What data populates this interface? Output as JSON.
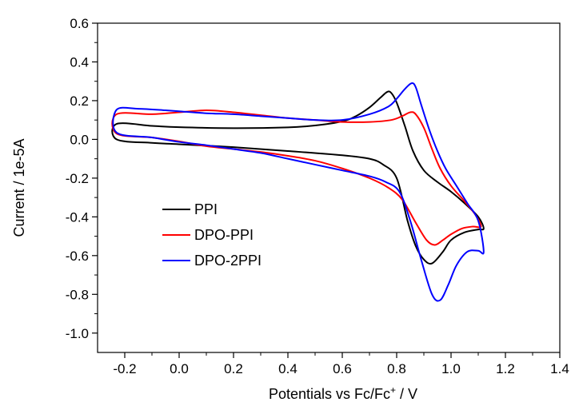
{
  "chart_data": {
    "type": "line",
    "xlabel": "Potentials vs Fc/Fc",
    "xlabel_sup": "+",
    "xlabel_unit": " / V",
    "ylabel": "Current / 1e-5A",
    "xlim": [
      -0.3,
      1.4
    ],
    "ylim": [
      -1.1,
      0.6
    ],
    "xticks": [
      -0.2,
      0.0,
      0.2,
      0.4,
      0.6,
      0.8,
      1.0,
      1.2,
      1.4
    ],
    "xtick_labels": [
      "-0.2",
      "0.0",
      "0.2",
      "0.4",
      "0.6",
      "0.8",
      "1.0",
      "1.2",
      "1.4"
    ],
    "yticks": [
      -1.0,
      -0.8,
      -0.6,
      -0.4,
      -0.2,
      0.0,
      0.2,
      0.4,
      0.6
    ],
    "ytick_labels": [
      "-1.0",
      "-0.8",
      "-0.6",
      "-0.4",
      "-0.2",
      "0.0",
      "0.2",
      "0.4",
      "0.6"
    ],
    "grid": false,
    "legend_position": "middle-left",
    "series": [
      {
        "name": "PPI",
        "color": "#000000",
        "points": [
          [
            -0.23,
            0.08
          ],
          [
            -0.1,
            0.07
          ],
          [
            0.0,
            0.063
          ],
          [
            0.2,
            0.058
          ],
          [
            0.4,
            0.062
          ],
          [
            0.5,
            0.072
          ],
          [
            0.6,
            0.093
          ],
          [
            0.65,
            0.12
          ],
          [
            0.7,
            0.165
          ],
          [
            0.74,
            0.215
          ],
          [
            0.765,
            0.245
          ],
          [
            0.78,
            0.24
          ],
          [
            0.8,
            0.19
          ],
          [
            0.83,
            0.07
          ],
          [
            0.86,
            -0.06
          ],
          [
            0.9,
            -0.16
          ],
          [
            0.95,
            -0.22
          ],
          [
            1.0,
            -0.27
          ],
          [
            1.05,
            -0.33
          ],
          [
            1.1,
            -0.4
          ],
          [
            1.12,
            -0.46
          ],
          [
            1.1,
            -0.465
          ],
          [
            1.05,
            -0.48
          ],
          [
            1.0,
            -0.52
          ],
          [
            0.97,
            -0.58
          ],
          [
            0.93,
            -0.64
          ],
          [
            0.9,
            -0.62
          ],
          [
            0.87,
            -0.55
          ],
          [
            0.84,
            -0.42
          ],
          [
            0.8,
            -0.2
          ],
          [
            0.75,
            -0.13
          ],
          [
            0.7,
            -0.1
          ],
          [
            0.6,
            -0.082
          ],
          [
            0.4,
            -0.06
          ],
          [
            0.2,
            -0.04
          ],
          [
            0.0,
            -0.025
          ],
          [
            -0.1,
            -0.018
          ],
          [
            -0.23,
            0.0
          ]
        ]
      },
      {
        "name": "DPO-PPI",
        "color": "#ff0000",
        "points": [
          [
            -0.23,
            0.13
          ],
          [
            -0.1,
            0.13
          ],
          [
            0.0,
            0.14
          ],
          [
            0.1,
            0.15
          ],
          [
            0.2,
            0.14
          ],
          [
            0.3,
            0.125
          ],
          [
            0.4,
            0.11
          ],
          [
            0.5,
            0.1
          ],
          [
            0.6,
            0.09
          ],
          [
            0.7,
            0.09
          ],
          [
            0.78,
            0.1
          ],
          [
            0.82,
            0.12
          ],
          [
            0.85,
            0.14
          ],
          [
            0.87,
            0.13
          ],
          [
            0.9,
            0.06
          ],
          [
            0.93,
            -0.05
          ],
          [
            0.96,
            -0.15
          ],
          [
            1.0,
            -0.24
          ],
          [
            1.05,
            -0.32
          ],
          [
            1.09,
            -0.39
          ],
          [
            1.11,
            -0.45
          ],
          [
            1.08,
            -0.45
          ],
          [
            1.04,
            -0.46
          ],
          [
            1.0,
            -0.49
          ],
          [
            0.97,
            -0.52
          ],
          [
            0.94,
            -0.545
          ],
          [
            0.91,
            -0.52
          ],
          [
            0.87,
            -0.43
          ],
          [
            0.82,
            -0.31
          ],
          [
            0.77,
            -0.25
          ],
          [
            0.7,
            -0.2
          ],
          [
            0.6,
            -0.15
          ],
          [
            0.5,
            -0.11
          ],
          [
            0.4,
            -0.085
          ],
          [
            0.3,
            -0.065
          ],
          [
            0.2,
            -0.05
          ],
          [
            0.1,
            -0.035
          ],
          [
            0.0,
            -0.01
          ],
          [
            -0.1,
            0.01
          ],
          [
            -0.23,
            0.03
          ]
        ]
      },
      {
        "name": "DPO-2PPI",
        "color": "#0000ff",
        "points": [
          [
            -0.23,
            0.153
          ],
          [
            -0.15,
            0.158
          ],
          [
            -0.05,
            0.15
          ],
          [
            0.0,
            0.145
          ],
          [
            0.1,
            0.135
          ],
          [
            0.2,
            0.13
          ],
          [
            0.3,
            0.12
          ],
          [
            0.4,
            0.11
          ],
          [
            0.5,
            0.1
          ],
          [
            0.6,
            0.1
          ],
          [
            0.7,
            0.13
          ],
          [
            0.77,
            0.17
          ],
          [
            0.8,
            0.21
          ],
          [
            0.83,
            0.26
          ],
          [
            0.855,
            0.29
          ],
          [
            0.87,
            0.27
          ],
          [
            0.89,
            0.18
          ],
          [
            0.92,
            0.05
          ],
          [
            0.95,
            -0.06
          ],
          [
            0.98,
            -0.15
          ],
          [
            1.02,
            -0.24
          ],
          [
            1.06,
            -0.33
          ],
          [
            1.1,
            -0.42
          ],
          [
            1.12,
            -0.58
          ],
          [
            1.1,
            -0.575
          ],
          [
            1.06,
            -0.58
          ],
          [
            1.02,
            -0.65
          ],
          [
            0.99,
            -0.75
          ],
          [
            0.96,
            -0.83
          ],
          [
            0.93,
            -0.8
          ],
          [
            0.89,
            -0.62
          ],
          [
            0.85,
            -0.42
          ],
          [
            0.81,
            -0.27
          ],
          [
            0.76,
            -0.22
          ],
          [
            0.7,
            -0.19
          ],
          [
            0.6,
            -0.16
          ],
          [
            0.5,
            -0.13
          ],
          [
            0.4,
            -0.1
          ],
          [
            0.3,
            -0.07
          ],
          [
            0.2,
            -0.05
          ],
          [
            0.1,
            -0.03
          ],
          [
            0.0,
            -0.013
          ],
          [
            -0.1,
            0.01
          ],
          [
            -0.23,
            0.035
          ]
        ]
      }
    ]
  }
}
